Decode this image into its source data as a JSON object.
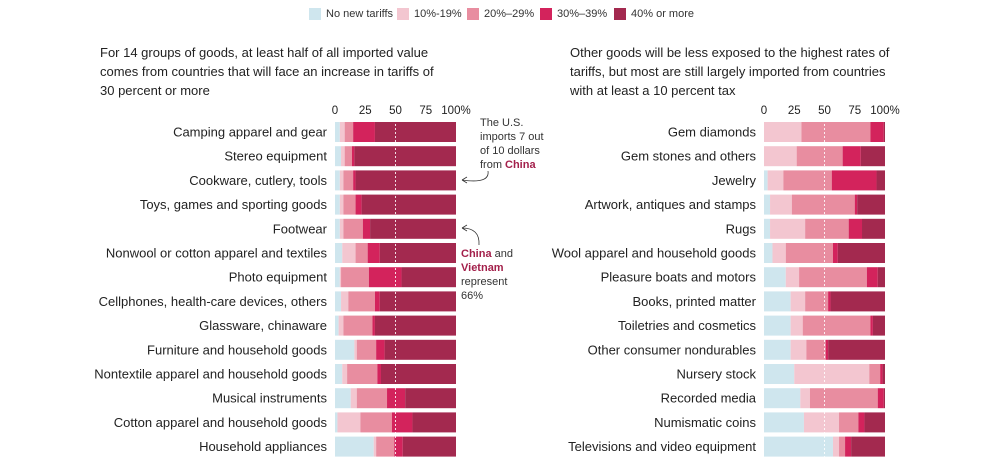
{
  "legend": [
    {
      "label": "No new tariffs",
      "color": "#cfe6ee"
    },
    {
      "label": "10%-19%",
      "color": "#f3c6d0"
    },
    {
      "label": "20%–29%",
      "color": "#e88da0"
    },
    {
      "label": "30%–39%",
      "color": "#d3235c"
    },
    {
      "label": "40% or more",
      "color": "#a3294f"
    }
  ],
  "left_panel": {
    "description": "For 14 groups of goods, at least half of all imported value comes from countries that will face an increase in tariffs of 30 percent or more"
  },
  "right_panel": {
    "description": "Other goods will be less exposed to the highest rates of tariffs, but most are still largely imported from countries with at least a 10 percent tax"
  },
  "annotations": {
    "china_note": {
      "line1": "The U.S.",
      "line2": "imports 7 out",
      "line3": "of 10 dollars",
      "line4": "from",
      "bold": "China"
    },
    "vietnam_note": {
      "bold1": "China",
      "line1": " and",
      "bold2": "Vietnam",
      "line2": "represent",
      "line3": "66%"
    }
  },
  "chart_data": [
    {
      "type": "bar",
      "orientation": "horizontal",
      "stacked": true,
      "title": "For 14 groups of goods, at least half of all imported value comes from countries that will face an increase in tariffs of 30 percent or more",
      "xlim": [
        0,
        100
      ],
      "ticks": [
        "0",
        "25",
        "50",
        "75",
        "100%"
      ],
      "categories": [
        "Camping apparel and gear",
        "Stereo equipment",
        "Cookware, cutlery, tools",
        "Toys, games and sporting goods",
        "Footwear",
        "Nonwool or cotton apparel and textiles",
        "Photo equipment",
        "Cellphones, health-care devices, others",
        "Glassware, chinaware",
        "Furniture and household goods",
        "Nontextile apparel and household goods",
        "Musical instruments",
        "Cotton apparel and household goods",
        "Household appliances"
      ],
      "series": [
        {
          "name": "No new tariffs",
          "values": [
            4,
            5,
            4,
            4,
            4,
            6,
            4,
            5,
            3,
            16,
            6,
            13,
            2,
            32
          ]
        },
        {
          "name": "10%-19%",
          "values": [
            4,
            3,
            3,
            3,
            3,
            11,
            1,
            6,
            4,
            2,
            4,
            5,
            19,
            2
          ]
        },
        {
          "name": "20%–29%",
          "values": [
            7,
            6,
            8,
            10,
            16,
            10,
            23,
            22,
            24,
            16,
            25,
            25,
            26,
            15
          ]
        },
        {
          "name": "30%–39%",
          "values": [
            18,
            2,
            2,
            5,
            6,
            10,
            27,
            4,
            2,
            7,
            3,
            15,
            17,
            7
          ]
        },
        {
          "name": "40% or more",
          "values": [
            67,
            84,
            83,
            78,
            71,
            63,
            45,
            63,
            67,
            59,
            62,
            42,
            36,
            44
          ]
        }
      ]
    },
    {
      "type": "bar",
      "orientation": "horizontal",
      "stacked": true,
      "title": "Other goods will be less exposed to the highest rates of tariffs, but most are still largely imported from countries with at least a 10 percent tax",
      "xlim": [
        0,
        100
      ],
      "ticks": [
        "0",
        "25",
        "50",
        "75",
        "100%"
      ],
      "categories": [
        "Gem diamonds",
        "Gem stones and others",
        "Jewelry",
        "Artwork, antiques and stamps",
        "Rugs",
        "Wool apparel and household goods",
        "Pleasure boats and motors",
        "Books, printed matter",
        "Toiletries and cosmetics",
        "Other consumer nondurables",
        "Nursery stock",
        "Recorded media",
        "Numismatic coins",
        "Televisions and video equipment"
      ],
      "series": [
        {
          "name": "No new tariffs",
          "values": [
            0,
            0,
            3,
            5,
            5,
            7,
            18,
            22,
            22,
            22,
            25,
            30,
            33,
            57
          ]
        },
        {
          "name": "10%-19%",
          "values": [
            31,
            27,
            13,
            18,
            29,
            11,
            11,
            12,
            10,
            13,
            62,
            8,
            29,
            5
          ]
        },
        {
          "name": "20%–29%",
          "values": [
            57,
            38,
            40,
            52,
            36,
            39,
            56,
            19,
            56,
            16,
            9,
            56,
            16,
            5
          ]
        },
        {
          "name": "30%–39%",
          "values": [
            11,
            15,
            37,
            2,
            11,
            4,
            9,
            2,
            2,
            2,
            2,
            5,
            5,
            5
          ]
        },
        {
          "name": "40% or more",
          "values": [
            1,
            20,
            7,
            23,
            19,
            39,
            6,
            45,
            10,
            47,
            2,
            1,
            17,
            28
          ]
        }
      ]
    }
  ]
}
